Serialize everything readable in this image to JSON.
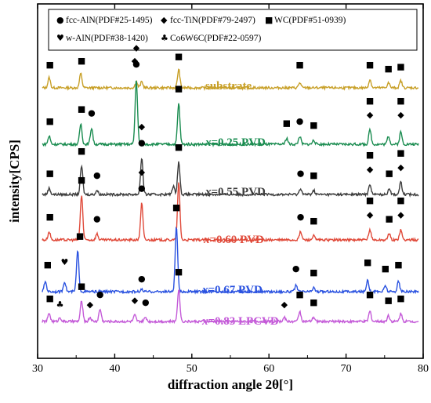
{
  "chart_data": {
    "type": "line",
    "xlabel": "diffraction angle 2θ[°]",
    "ylabel": "intensity[CPS]",
    "xlim": [
      30,
      80
    ],
    "xticks": [
      30,
      40,
      50,
      60,
      70,
      80
    ],
    "x_tick_labels": [
      "30",
      "40",
      "50",
      "60",
      "70",
      "80"
    ],
    "y_tick_labels": [],
    "legend": {
      "placement": "top",
      "entries": [
        {
          "symbol": "●",
          "icon": "circle-marker",
          "text": "fcc-AlN(PDF#25-1495)"
        },
        {
          "symbol": "◆",
          "icon": "diamond-marker",
          "text": "fcc-TiN(PDF#79-2497)"
        },
        {
          "symbol": "■",
          "icon": "square-marker",
          "text": "WC(PDF#51-0939)"
        },
        {
          "symbol": "♥",
          "icon": "heart-marker",
          "text": "w-AlN(PDF#38-1420)"
        },
        {
          "symbol": "♣",
          "icon": "club-marker",
          "text": "Co6W6C(PDF#22-0597)"
        }
      ]
    },
    "series": [
      {
        "name": "substrate",
        "label_prefix": "",
        "label_suffix": "substrate",
        "color": "#c8a028",
        "baseline": 0.06,
        "peaks": [
          [
            31.5,
            0.05
          ],
          [
            35.6,
            0.07
          ],
          [
            42.8,
            0.03
          ],
          [
            43.5,
            0.03
          ],
          [
            48.3,
            0.09
          ],
          [
            64.0,
            0.025
          ],
          [
            73.1,
            0.04
          ],
          [
            75.5,
            0.025
          ],
          [
            77.1,
            0.035
          ]
        ],
        "markers": [
          {
            "x": 31.6,
            "s": "■",
            "y": 0.1
          },
          {
            "x": 35.7,
            "s": "■",
            "y": 0.12
          },
          {
            "x": 42.6,
            "s": "◆",
            "y": 0.12
          },
          {
            "x": 48.3,
            "s": "■",
            "y": 0.14
          },
          {
            "x": 64.0,
            "s": "■",
            "y": 0.1
          },
          {
            "x": 73.1,
            "s": "■",
            "y": 0.1
          },
          {
            "x": 75.5,
            "s": "■",
            "y": 0.08
          },
          {
            "x": 77.1,
            "s": "■",
            "y": 0.09
          }
        ]
      },
      {
        "name": "x=0.25 PVD",
        "label_prefix": "x",
        "label_suffix": "=0.25 PVD",
        "color": "#1a8c50",
        "baseline": 0.06,
        "peaks": [
          [
            31.5,
            0.04
          ],
          [
            35.6,
            0.1
          ],
          [
            37.0,
            0.08
          ],
          [
            42.8,
            0.32
          ],
          [
            48.3,
            0.2
          ],
          [
            62.3,
            0.03
          ],
          [
            64.0,
            0.04
          ],
          [
            65.8,
            0.02
          ],
          [
            73.1,
            0.07
          ],
          [
            75.5,
            0.04
          ],
          [
            77.1,
            0.06
          ]
        ],
        "markers": [
          {
            "x": 31.6,
            "s": "■",
            "y": 0.1
          },
          {
            "x": 35.7,
            "s": "■",
            "y": 0.16
          },
          {
            "x": 37.0,
            "s": "●",
            "y": 0.14
          },
          {
            "x": 42.8,
            "s": "●",
            "y": 0.38
          },
          {
            "x": 42.8,
            "s": "◆",
            "y": 0.46
          },
          {
            "x": 48.3,
            "s": "■",
            "y": 0.26
          },
          {
            "x": 62.3,
            "s": "■",
            "y": 0.09
          },
          {
            "x": 64.0,
            "s": "●",
            "y": 0.1
          },
          {
            "x": 65.8,
            "s": "■",
            "y": 0.08
          },
          {
            "x": 73.1,
            "s": "◆",
            "y": 0.13
          },
          {
            "x": 73.1,
            "s": "■",
            "y": 0.2
          },
          {
            "x": 77.1,
            "s": "◆",
            "y": 0.13
          },
          {
            "x": 77.1,
            "s": "■",
            "y": 0.2
          }
        ]
      },
      {
        "name": "x=0.55 PVD",
        "label_prefix": "x",
        "label_suffix": "=0.55 PVD",
        "color": "#3c3c3c",
        "baseline": 0.06,
        "peaks": [
          [
            31.5,
            0.03
          ],
          [
            35.7,
            0.14
          ],
          [
            37.7,
            0.02
          ],
          [
            43.5,
            0.18
          ],
          [
            47.6,
            0.04
          ],
          [
            48.3,
            0.16
          ],
          [
            64.1,
            0.03
          ],
          [
            65.8,
            0.02
          ],
          [
            73.1,
            0.05
          ],
          [
            75.6,
            0.03
          ],
          [
            77.1,
            0.06
          ]
        ],
        "markers": [
          {
            "x": 31.6,
            "s": "■",
            "y": 0.09
          },
          {
            "x": 35.7,
            "s": "■",
            "y": 0.2
          },
          {
            "x": 37.7,
            "s": "●",
            "y": 0.08
          },
          {
            "x": 43.5,
            "s": "●",
            "y": 0.24
          },
          {
            "x": 43.5,
            "s": "◆",
            "y": 0.32
          },
          {
            "x": 48.3,
            "s": "■",
            "y": 0.22
          },
          {
            "x": 64.1,
            "s": "●",
            "y": 0.09
          },
          {
            "x": 65.8,
            "s": "■",
            "y": 0.08
          },
          {
            "x": 73.1,
            "s": "◆",
            "y": 0.11
          },
          {
            "x": 73.1,
            "s": "■",
            "y": 0.18
          },
          {
            "x": 75.6,
            "s": "■",
            "y": 0.09
          },
          {
            "x": 77.1,
            "s": "◆",
            "y": 0.12
          },
          {
            "x": 77.1,
            "s": "■",
            "y": 0.19
          }
        ]
      },
      {
        "name": "x=0.60 PVD",
        "label_prefix": "x",
        "label_suffix": "=0.60 PVD",
        "color": "#e04a3a",
        "baseline": 0.06,
        "peaks": [
          [
            31.5,
            0.04
          ],
          [
            35.7,
            0.22
          ],
          [
            37.7,
            0.03
          ],
          [
            43.5,
            0.18
          ],
          [
            48.3,
            0.28
          ],
          [
            64.1,
            0.04
          ],
          [
            65.8,
            0.02
          ],
          [
            73.1,
            0.05
          ],
          [
            75.6,
            0.03
          ],
          [
            77.1,
            0.05
          ]
        ],
        "markers": [
          {
            "x": 31.6,
            "s": "■",
            "y": 0.1
          },
          {
            "x": 35.7,
            "s": "■",
            "y": 0.28
          },
          {
            "x": 37.7,
            "s": "●",
            "y": 0.09
          },
          {
            "x": 43.5,
            "s": "●",
            "y": 0.24
          },
          {
            "x": 43.5,
            "s": "◆",
            "y": 0.32
          },
          {
            "x": 64.1,
            "s": "●",
            "y": 0.1
          },
          {
            "x": 65.8,
            "s": "■",
            "y": 0.08
          },
          {
            "x": 73.1,
            "s": "◆",
            "y": 0.11
          },
          {
            "x": 73.1,
            "s": "■",
            "y": 0.18
          },
          {
            "x": 75.6,
            "s": "■",
            "y": 0.09
          },
          {
            "x": 77.1,
            "s": "◆",
            "y": 0.11
          },
          {
            "x": 77.1,
            "s": "■",
            "y": 0.18
          }
        ]
      },
      {
        "name": "x=0.67 PVD",
        "label_prefix": "x",
        "label_suffix": "=0.67 PVD",
        "color": "#2a52e0",
        "baseline": 0.06,
        "peaks": [
          [
            31.0,
            0.05
          ],
          [
            33.5,
            0.05
          ],
          [
            35.2,
            0.2
          ],
          [
            43.5,
            0.01
          ],
          [
            48.0,
            0.32
          ],
          [
            63.5,
            0.03
          ],
          [
            65.8,
            0.02
          ],
          [
            72.8,
            0.06
          ],
          [
            75.1,
            0.03
          ],
          [
            76.8,
            0.05
          ]
        ],
        "markers": [
          {
            "x": 31.3,
            "s": "■",
            "y": 0.12
          },
          {
            "x": 33.5,
            "s": "♥",
            "y": 0.13
          },
          {
            "x": 35.5,
            "s": "■",
            "y": 0.26
          },
          {
            "x": 43.5,
            "s": "●",
            "y": 0.05
          },
          {
            "x": 48.0,
            "s": "■",
            "y": 0.4
          },
          {
            "x": 63.5,
            "s": "●",
            "y": 0.1
          },
          {
            "x": 65.8,
            "s": "■",
            "y": 0.08
          },
          {
            "x": 72.8,
            "s": "■",
            "y": 0.13
          },
          {
            "x": 75.1,
            "s": "■",
            "y": 0.1
          },
          {
            "x": 76.8,
            "s": "■",
            "y": 0.12
          }
        ]
      },
      {
        "name": "x=0.83 LPCVD",
        "label_prefix": "x",
        "label_suffix": "=0.83 LPCVD",
        "color": "#c45ad8",
        "baseline": 0.06,
        "peaks": [
          [
            31.5,
            0.04
          ],
          [
            32.9,
            0.02
          ],
          [
            35.7,
            0.1
          ],
          [
            36.8,
            0.02
          ],
          [
            38.1,
            0.06
          ],
          [
            42.6,
            0.03
          ],
          [
            44.0,
            0.02
          ],
          [
            48.3,
            0.16
          ],
          [
            62.0,
            0.02
          ],
          [
            64.0,
            0.05
          ],
          [
            65.8,
            0.02
          ],
          [
            73.1,
            0.05
          ],
          [
            75.5,
            0.03
          ],
          [
            77.1,
            0.04
          ]
        ],
        "markers": [
          {
            "x": 31.6,
            "s": "■",
            "y": 0.1
          },
          {
            "x": 32.9,
            "s": "♣",
            "y": 0.07
          },
          {
            "x": 35.7,
            "s": "■",
            "y": 0.16
          },
          {
            "x": 36.8,
            "s": "◆",
            "y": 0.07
          },
          {
            "x": 38.1,
            "s": "●",
            "y": 0.12
          },
          {
            "x": 42.6,
            "s": "◆",
            "y": 0.09
          },
          {
            "x": 44.0,
            "s": "●",
            "y": 0.08
          },
          {
            "x": 48.3,
            "s": "■",
            "y": 0.23
          },
          {
            "x": 62.0,
            "s": "◆",
            "y": 0.07
          },
          {
            "x": 64.0,
            "s": "■",
            "y": 0.12
          },
          {
            "x": 65.8,
            "s": "■",
            "y": 0.08
          },
          {
            "x": 73.1,
            "s": "■",
            "y": 0.12
          },
          {
            "x": 75.5,
            "s": "■",
            "y": 0.09
          },
          {
            "x": 77.1,
            "s": "■",
            "y": 0.1
          }
        ]
      }
    ]
  }
}
